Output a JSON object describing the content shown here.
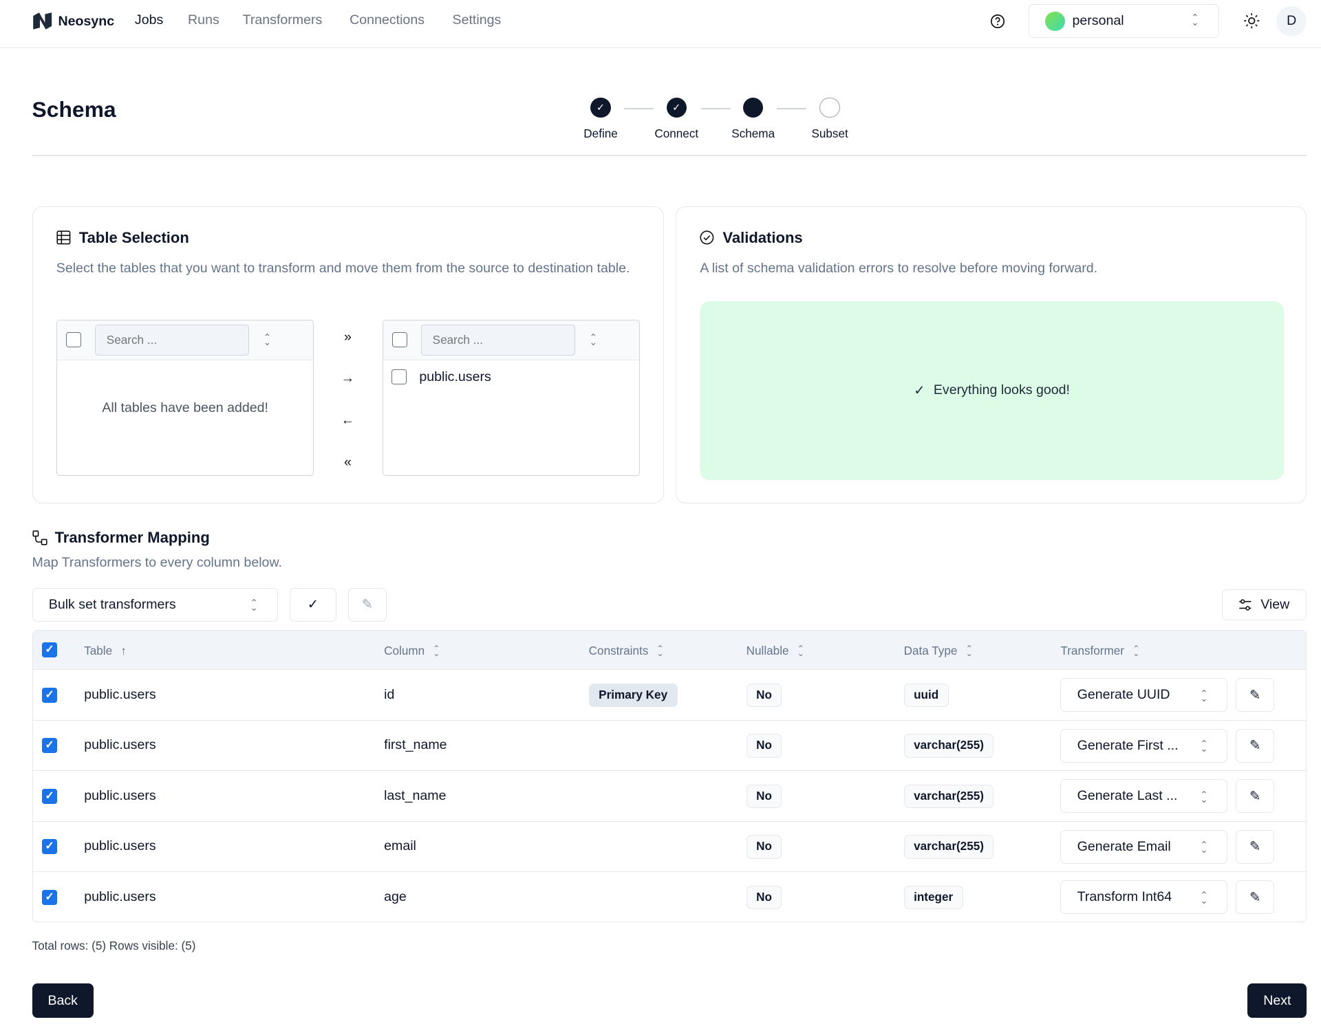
{
  "nav": {
    "brand": "Neosync",
    "links": [
      "Jobs",
      "Runs",
      "Transformers",
      "Connections",
      "Settings"
    ],
    "active": "Jobs",
    "account": "personal",
    "avatar": "D",
    "icons": {
      "help": "help-circle-icon",
      "theme": "sun-icon"
    }
  },
  "page": {
    "title": "Schema",
    "steps": [
      {
        "label": "Define",
        "state": "complete"
      },
      {
        "label": "Connect",
        "state": "complete"
      },
      {
        "label": "Schema",
        "state": "current"
      },
      {
        "label": "Subset",
        "state": "upcoming"
      }
    ]
  },
  "table_selection": {
    "title": "Table Selection",
    "description": "Select the tables that you want to transform and move them from the source to destination table.",
    "source": {
      "search_placeholder": "Search ...",
      "empty_text": "All tables have been added!"
    },
    "destination": {
      "search_placeholder": "Search ...",
      "items": [
        "public.users"
      ]
    },
    "move_buttons": [
      "»",
      "→",
      "←",
      "«"
    ]
  },
  "validations": {
    "title": "Validations",
    "description": "A list of schema validation errors to resolve before moving forward.",
    "status": "Everything looks good!",
    "status_color": "#dcfce7"
  },
  "mapping": {
    "title": "Transformer Mapping",
    "description": "Map Transformers to every column below.",
    "bulk_placeholder": "Bulk set transformers",
    "view_label": "View",
    "columns": [
      "Table",
      "Column",
      "Constraints",
      "Nullable",
      "Data Type",
      "Transformer"
    ],
    "rows": [
      {
        "table": "public.users",
        "column": "id",
        "constraint": "Primary Key",
        "nullable": "No",
        "type": "uuid",
        "transformer": "Generate UUID"
      },
      {
        "table": "public.users",
        "column": "first_name",
        "constraint": "",
        "nullable": "No",
        "type": "varchar(255)",
        "transformer": "Generate First ..."
      },
      {
        "table": "public.users",
        "column": "last_name",
        "constraint": "",
        "nullable": "No",
        "type": "varchar(255)",
        "transformer": "Generate Last ..."
      },
      {
        "table": "public.users",
        "column": "email",
        "constraint": "",
        "nullable": "No",
        "type": "varchar(255)",
        "transformer": "Generate Email"
      },
      {
        "table": "public.users",
        "column": "age",
        "constraint": "",
        "nullable": "No",
        "type": "integer",
        "transformer": "Transform Int64"
      }
    ],
    "footer": "Total rows: (5) Rows visible: (5)"
  },
  "actions": {
    "back": "Back",
    "next": "Next"
  }
}
